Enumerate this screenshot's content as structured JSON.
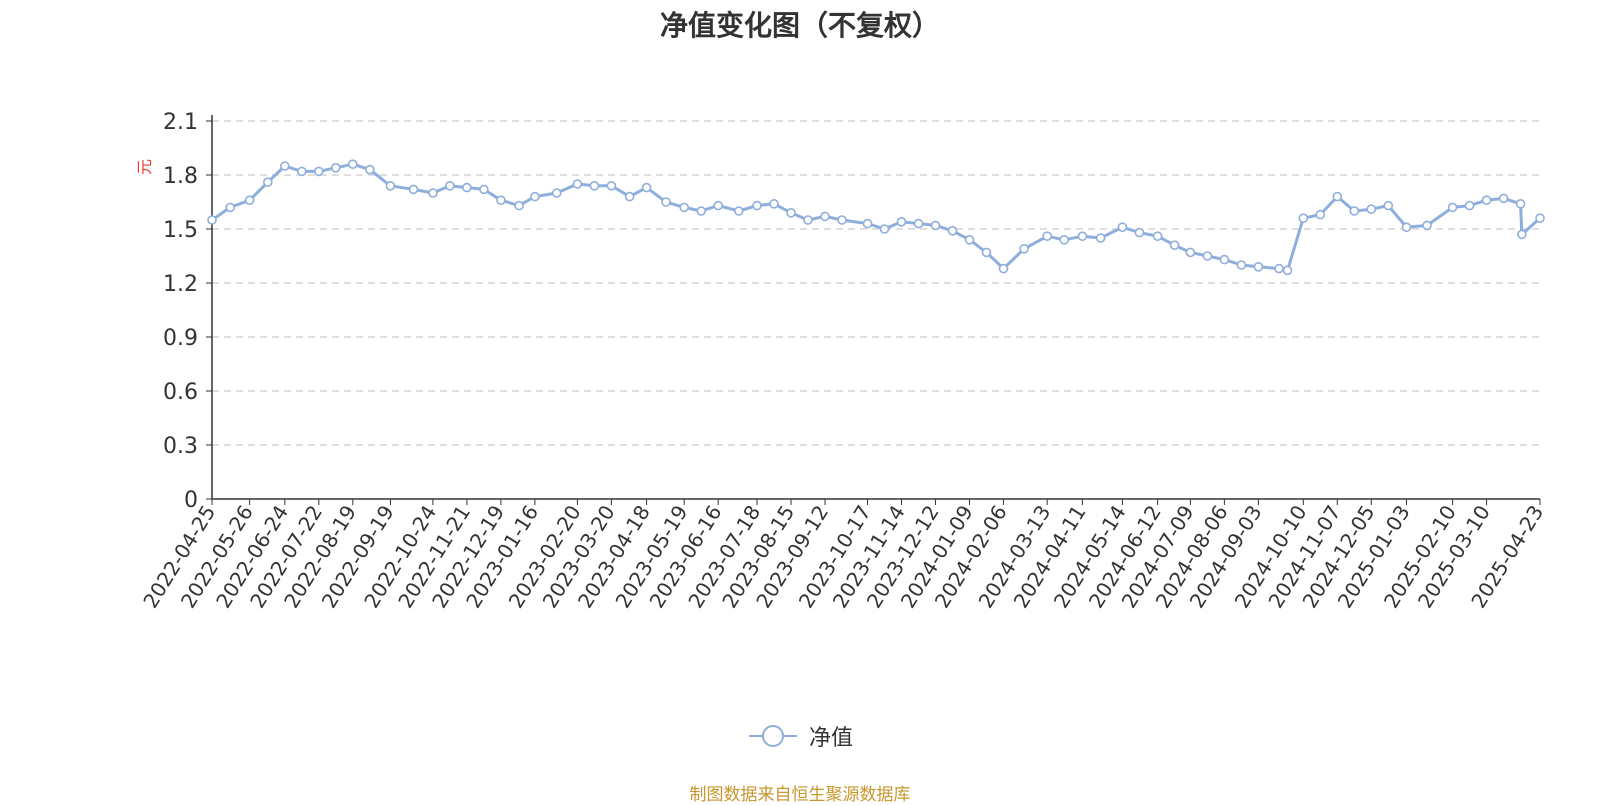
{
  "chart_data": {
    "type": "line",
    "title": "净值变化图（不复权）",
    "ylabel": "元",
    "ylim": [
      0,
      2.1
    ],
    "yticks": [
      0,
      0.3,
      0.6,
      0.9,
      1.2,
      1.5,
      1.8,
      2.1
    ],
    "grid": "horizontal-dashed",
    "legend_position": "bottom-center",
    "x_tick_labels": [
      "2022-04-25",
      "2022-05-26",
      "2022-06-24",
      "2022-07-22",
      "2022-08-19",
      "2022-09-19",
      "2022-10-24",
      "2022-11-21",
      "2022-12-19",
      "2023-01-16",
      "2023-02-20",
      "2023-03-20",
      "2023-04-18",
      "2023-05-19",
      "2023-06-16",
      "2023-07-18",
      "2023-08-15",
      "2023-09-12",
      "2023-10-17",
      "2023-11-14",
      "2023-12-12",
      "2024-01-09",
      "2024-02-06",
      "2024-03-13",
      "2024-04-11",
      "2024-05-14",
      "2024-06-12",
      "2024-07-09",
      "2024-08-06",
      "2024-09-03",
      "2024-10-10",
      "2024-11-07",
      "2024-12-05",
      "2025-01-03",
      "2025-02-10",
      "2025-03-10",
      "2025-04-23"
    ],
    "series": [
      {
        "name": "净值",
        "color": "#8eaedb",
        "x": [
          "2022-04-25",
          "2022-05-10",
          "2022-05-26",
          "2022-06-10",
          "2022-06-24",
          "2022-07-08",
          "2022-07-22",
          "2022-08-05",
          "2022-08-19",
          "2022-09-02",
          "2022-09-19",
          "2022-10-08",
          "2022-10-24",
          "2022-11-07",
          "2022-11-21",
          "2022-12-05",
          "2022-12-19",
          "2023-01-03",
          "2023-01-16",
          "2023-02-03",
          "2023-02-20",
          "2023-03-06",
          "2023-03-20",
          "2023-04-04",
          "2023-04-18",
          "2023-05-04",
          "2023-05-19",
          "2023-06-02",
          "2023-06-16",
          "2023-07-03",
          "2023-07-18",
          "2023-08-01",
          "2023-08-15",
          "2023-08-29",
          "2023-09-12",
          "2023-09-26",
          "2023-10-17",
          "2023-10-31",
          "2023-11-14",
          "2023-11-28",
          "2023-12-12",
          "2023-12-26",
          "2024-01-09",
          "2024-01-23",
          "2024-02-06",
          "2024-02-23",
          "2024-03-13",
          "2024-03-27",
          "2024-04-11",
          "2024-04-26",
          "2024-05-14",
          "2024-05-28",
          "2024-06-12",
          "2024-06-26",
          "2024-07-09",
          "2024-07-23",
          "2024-08-06",
          "2024-08-20",
          "2024-09-03",
          "2024-09-20",
          "2024-09-27",
          "2024-10-10",
          "2024-10-24",
          "2024-11-07",
          "2024-11-21",
          "2024-12-05",
          "2024-12-19",
          "2025-01-03",
          "2025-01-20",
          "2025-02-10",
          "2025-02-24",
          "2025-03-10",
          "2025-03-24",
          "2025-04-07",
          "2025-04-08",
          "2025-04-23"
        ],
        "values": [
          1.55,
          1.62,
          1.66,
          1.76,
          1.85,
          1.82,
          1.82,
          1.84,
          1.86,
          1.83,
          1.74,
          1.72,
          1.7,
          1.74,
          1.73,
          1.72,
          1.66,
          1.63,
          1.68,
          1.7,
          1.75,
          1.74,
          1.74,
          1.68,
          1.73,
          1.65,
          1.62,
          1.6,
          1.63,
          1.6,
          1.63,
          1.64,
          1.59,
          1.55,
          1.57,
          1.55,
          1.53,
          1.5,
          1.54,
          1.53,
          1.52,
          1.49,
          1.44,
          1.37,
          1.28,
          1.39,
          1.46,
          1.44,
          1.46,
          1.45,
          1.51,
          1.48,
          1.46,
          1.41,
          1.37,
          1.35,
          1.33,
          1.3,
          1.29,
          1.28,
          1.27,
          1.56,
          1.58,
          1.68,
          1.6,
          1.61,
          1.63,
          1.51,
          1.52,
          1.62,
          1.63,
          1.66,
          1.67,
          1.64,
          1.47,
          1.56
        ]
      }
    ]
  },
  "legend": {
    "label": "净值"
  },
  "footer": {
    "source": "制图数据来自恒生聚源数据库"
  }
}
